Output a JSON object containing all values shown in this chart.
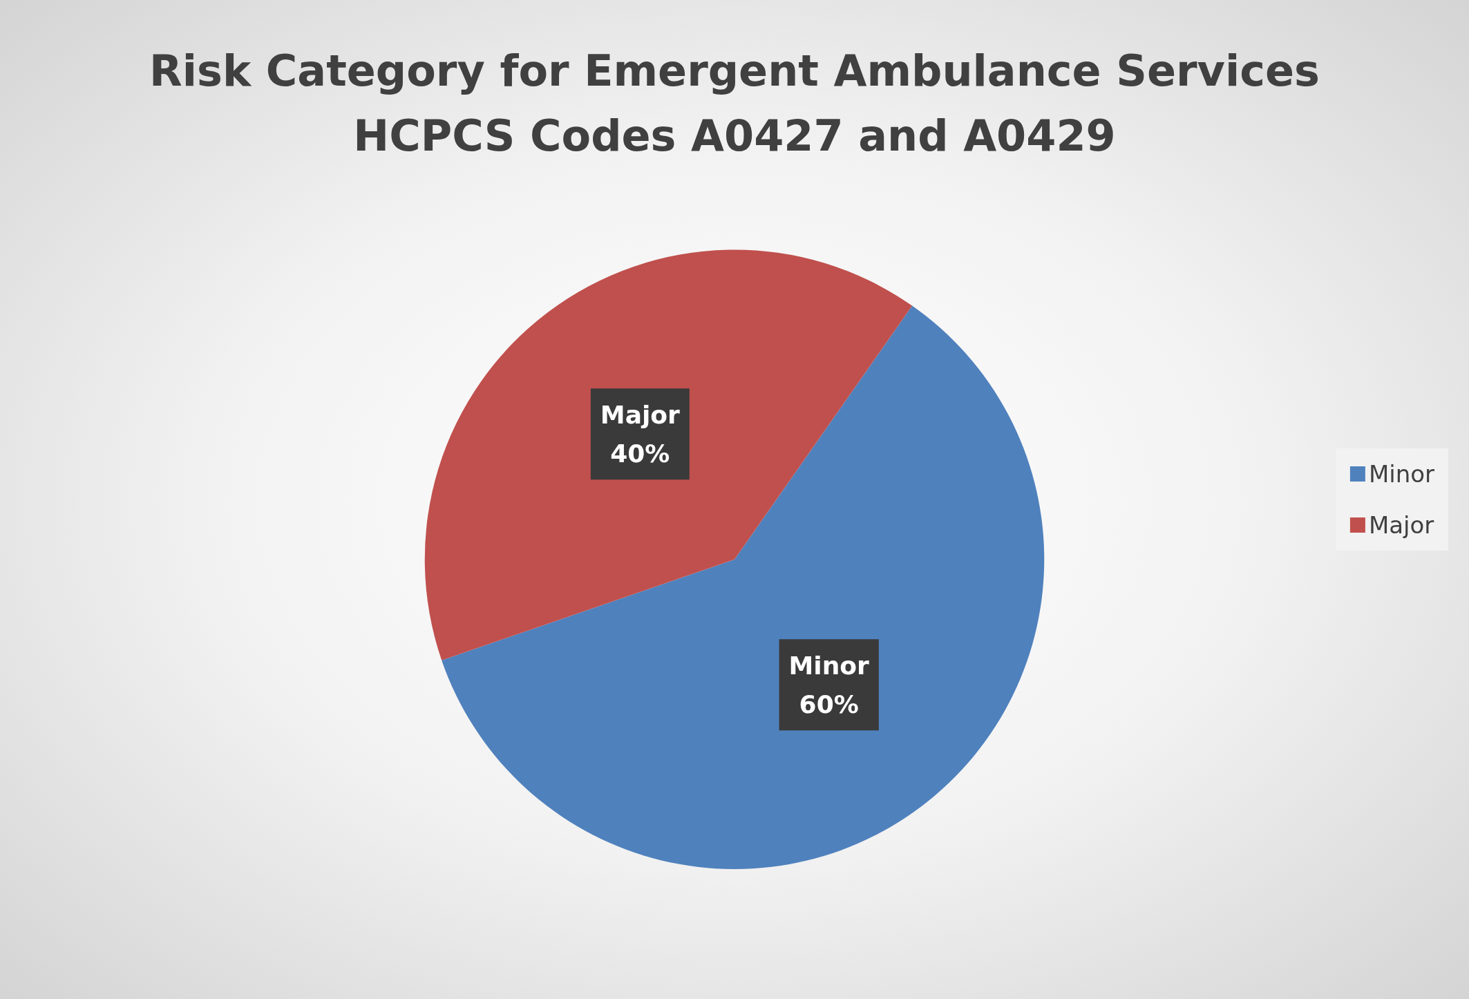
{
  "chart_data": {
    "type": "pie",
    "title": "Risk Category for Emergent Ambulance Services\nHCPCS Codes A0427 and A0429",
    "categories": [
      "Minor",
      "Major"
    ],
    "values": [
      60,
      40
    ],
    "colors": [
      "#4f81bd",
      "#c0504d"
    ],
    "value_labels": [
      "60%",
      "40%"
    ],
    "legend": "right"
  }
}
